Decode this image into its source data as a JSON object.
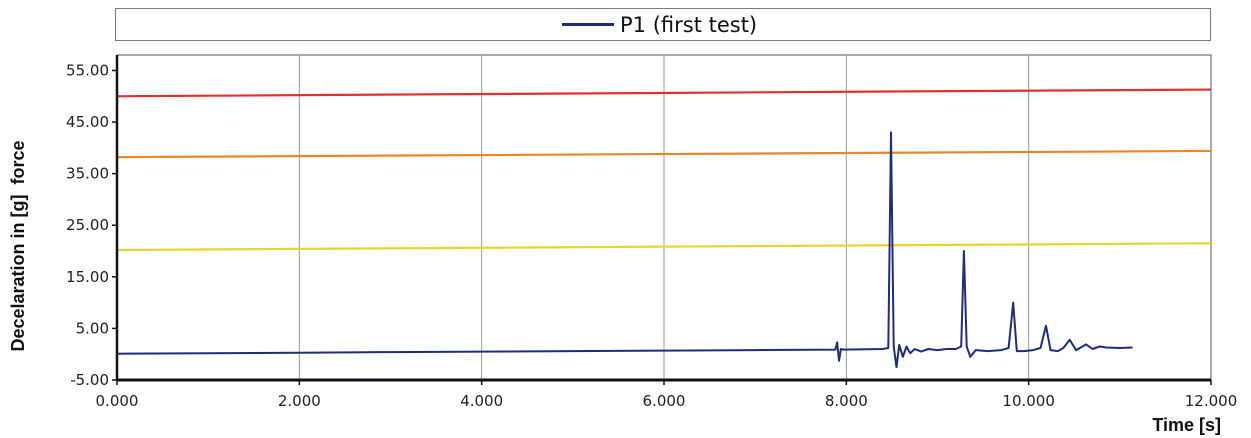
{
  "legend": {
    "entries": [
      {
        "label": "P1 (first test)",
        "color": "#1f2d7a"
      }
    ]
  },
  "chart_data": {
    "type": "line",
    "xlabel": "Time [s]",
    "ylabel": "Decelaration in [g]  force",
    "xlim": [
      0,
      12
    ],
    "ylim": [
      -5,
      58
    ],
    "x_ticks": [
      {
        "value": 0,
        "label": "0.000"
      },
      {
        "value": 2,
        "label": "2.000"
      },
      {
        "value": 4,
        "label": "4.000"
      },
      {
        "value": 6,
        "label": "6.000"
      },
      {
        "value": 8,
        "label": "8.000"
      },
      {
        "value": 10,
        "label": "10.000"
      },
      {
        "value": 12,
        "label": "12.000"
      }
    ],
    "y_ticks": [
      {
        "value": -5,
        "label": "-5.00"
      },
      {
        "value": 5,
        "label": "5.00"
      },
      {
        "value": 15,
        "label": "15.00"
      },
      {
        "value": 25,
        "label": "25.00"
      },
      {
        "value": 35,
        "label": "35.00"
      },
      {
        "value": 45,
        "label": "45.00"
      },
      {
        "value": 55,
        "label": "55.00"
      }
    ],
    "grid": "vertical",
    "legend_position": "top",
    "reference_lines": [
      {
        "color": "#e03030",
        "y_start": 50.0,
        "y_end": 51.3
      },
      {
        "color": "#e8862c",
        "y_start": 38.2,
        "y_end": 39.4
      },
      {
        "color": "#e8d630",
        "y_start": 20.2,
        "y_end": 21.5
      }
    ],
    "series": [
      {
        "name": "P1 (first test)",
        "color": "#1f2d7a",
        "points": [
          [
            0.0,
            0.1
          ],
          [
            1.0,
            0.2
          ],
          [
            2.0,
            0.3
          ],
          [
            3.0,
            0.4
          ],
          [
            4.0,
            0.5
          ],
          [
            5.0,
            0.6
          ],
          [
            6.0,
            0.7
          ],
          [
            7.0,
            0.8
          ],
          [
            7.88,
            0.9
          ],
          [
            7.9,
            2.3
          ],
          [
            7.92,
            -1.3
          ],
          [
            7.94,
            1.0
          ],
          [
            7.97,
            0.9
          ],
          [
            8.4,
            1.0
          ],
          [
            8.46,
            1.2
          ],
          [
            8.49,
            43.0
          ],
          [
            8.52,
            1.5
          ],
          [
            8.55,
            -2.5
          ],
          [
            8.58,
            1.8
          ],
          [
            8.62,
            -0.5
          ],
          [
            8.66,
            1.5
          ],
          [
            8.7,
            0.2
          ],
          [
            8.75,
            1.0
          ],
          [
            8.82,
            0.5
          ],
          [
            8.9,
            1.0
          ],
          [
            9.0,
            0.8
          ],
          [
            9.1,
            1.0
          ],
          [
            9.2,
            1.0
          ],
          [
            9.26,
            1.5
          ],
          [
            9.29,
            20.0
          ],
          [
            9.32,
            1.5
          ],
          [
            9.36,
            -0.5
          ],
          [
            9.42,
            0.8
          ],
          [
            9.55,
            0.6
          ],
          [
            9.7,
            0.8
          ],
          [
            9.78,
            1.2
          ],
          [
            9.83,
            10.0
          ],
          [
            9.87,
            0.6
          ],
          [
            9.95,
            0.6
          ],
          [
            10.05,
            0.8
          ],
          [
            10.13,
            1.2
          ],
          [
            10.19,
            5.5
          ],
          [
            10.24,
            0.8
          ],
          [
            10.32,
            0.6
          ],
          [
            10.38,
            1.2
          ],
          [
            10.45,
            2.8
          ],
          [
            10.52,
            0.8
          ],
          [
            10.59,
            1.5
          ],
          [
            10.63,
            1.9
          ],
          [
            10.7,
            1.0
          ],
          [
            10.78,
            1.5
          ],
          [
            10.85,
            1.3
          ],
          [
            11.0,
            1.2
          ],
          [
            11.14,
            1.3
          ]
        ]
      }
    ]
  }
}
